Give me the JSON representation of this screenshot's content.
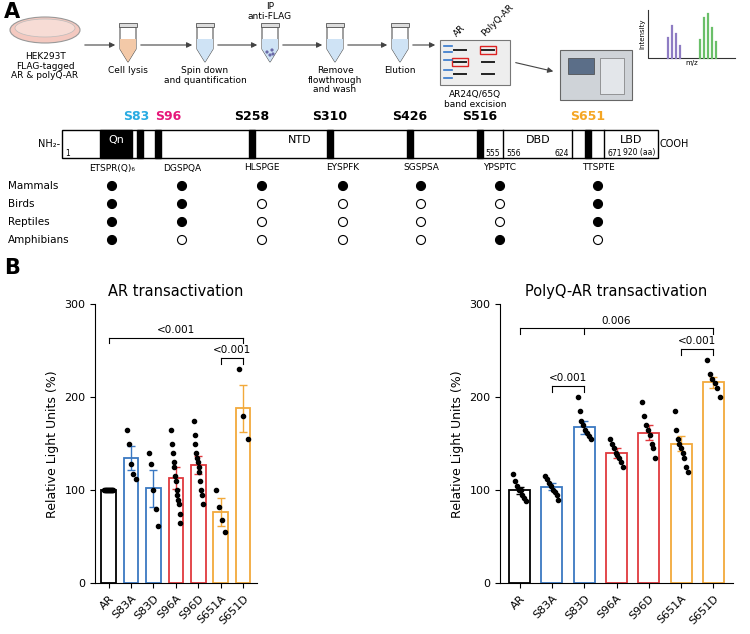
{
  "panel_labels": [
    "A",
    "B"
  ],
  "workflow": {
    "steps": [
      "HEK293T\nFLAG-tagged\nAR & polyQ-AR",
      "Cell lysis",
      "Spin down\nand quantification",
      "IP\nanti-FLAG",
      "Remove\nflowthrough\nand wash",
      "Elution",
      "AR24Q/65Q\nband excision"
    ],
    "gel_lanes": [
      "AR",
      "PolyQ-AR"
    ],
    "spectrum_axes": {
      "y": "Intensity",
      "x": "m/z"
    }
  },
  "protein_map": {
    "n_terminus": "NH₂-",
    "c_terminus": "COOH",
    "domains": [
      "Qn",
      "NTD",
      "DBD",
      "LBD"
    ],
    "boundary_labels": [
      "1",
      "555",
      "556",
      "624",
      "671",
      "920 (aa)"
    ],
    "sites": [
      {
        "label": "S83",
        "color": "#29abe2",
        "motif": "ETSPR(Q)₆"
      },
      {
        "label": "S96",
        "color": "#e6177a",
        "motif": "DGSPQA"
      },
      {
        "label": "S258",
        "color": "#000000",
        "motif": "HLSPGE"
      },
      {
        "label": "S310",
        "color": "#000000",
        "motif": "EYSPFK"
      },
      {
        "label": "S426",
        "color": "#000000",
        "motif": "SGSPSA"
      },
      {
        "label": "S516",
        "color": "#000000",
        "motif": "YPSPTC"
      },
      {
        "label": "S651",
        "color": "#f5a623",
        "motif": "TTSPTE"
      }
    ],
    "species": [
      "Mammals",
      "Birds",
      "Reptiles",
      "Amphibians"
    ],
    "conserved": [
      [
        true,
        true,
        true,
        true,
        true,
        true,
        true
      ],
      [
        true,
        true,
        false,
        false,
        false,
        false,
        true
      ],
      [
        true,
        true,
        false,
        false,
        false,
        false,
        true
      ],
      [
        true,
        false,
        false,
        false,
        false,
        true,
        false
      ]
    ]
  },
  "chart_data": [
    {
      "type": "bar",
      "title": "AR transactivation",
      "y_label": "Relative Light Units (%)",
      "categories": [
        "AR",
        "S83A",
        "S83D",
        "S96A",
        "S96D",
        "S651A",
        "S651D"
      ],
      "values": [
        100,
        135,
        102,
        113,
        127,
        77,
        188
      ],
      "errors": [
        2,
        13,
        20,
        12,
        10,
        15,
        25
      ],
      "points": [
        [
          100,
          100,
          100,
          100,
          100,
          100,
          100,
          100,
          100,
          100
        ],
        [
          165,
          150,
          128,
          118,
          112
        ],
        [
          140,
          128,
          100,
          80,
          62
        ],
        [
          165,
          150,
          140,
          130,
          125,
          115,
          110,
          100,
          95,
          90,
          85,
          75,
          65
        ],
        [
          175,
          160,
          150,
          140,
          135,
          130,
          125,
          120,
          110,
          100,
          95,
          85
        ],
        [
          100,
          82,
          68,
          55
        ],
        [
          230,
          180,
          155
        ]
      ],
      "colors": [
        "#000000",
        "#3a78c2",
        "#3a78c2",
        "#e0393e",
        "#e0393e",
        "#f2a93b",
        "#f2a93b"
      ],
      "ylim": [
        0,
        300
      ],
      "yticks": [
        0,
        100,
        200,
        300
      ],
      "grid": false,
      "annotations": [
        {
          "between": [
            "S651A",
            "S651D"
          ],
          "label": "<0.001"
        },
        {
          "between": [
            "AR",
            "S651D"
          ],
          "label": "<0.001"
        }
      ]
    },
    {
      "type": "bar",
      "title": "PolyQ-AR transactivation",
      "y_label": "Relative Light Units (%)",
      "categories": [
        "AR",
        "S83A",
        "S83D",
        "S96A",
        "S96D",
        "S651A",
        "S651D"
      ],
      "values": [
        100,
        104,
        168,
        140,
        162,
        150,
        216
      ],
      "errors": [
        4,
        4,
        7,
        5,
        8,
        8,
        6
      ],
      "points": [
        [
          118,
          110,
          105,
          100,
          100,
          95,
          92,
          88
        ],
        [
          115,
          112,
          108,
          105,
          100,
          98,
          95,
          90
        ],
        [
          200,
          185,
          175,
          170,
          165,
          162,
          158,
          155
        ],
        [
          155,
          150,
          145,
          140,
          138,
          135,
          130,
          125
        ],
        [
          195,
          180,
          170,
          165,
          160,
          150,
          145,
          135
        ],
        [
          185,
          165,
          155,
          150,
          145,
          140,
          135,
          125,
          120
        ],
        [
          240,
          225,
          220,
          215,
          210,
          200
        ]
      ],
      "colors": [
        "#000000",
        "#3a78c2",
        "#3a78c2",
        "#e0393e",
        "#e0393e",
        "#f2a93b",
        "#f2a93b"
      ],
      "ylim": [
        0,
        300
      ],
      "yticks": [
        0,
        100,
        200,
        300
      ],
      "grid": false,
      "annotations": [
        {
          "between": [
            "S83A",
            "S83D"
          ],
          "label": "<0.001"
        },
        {
          "between": [
            "S651A",
            "S651D"
          ],
          "label": "<0.001"
        },
        {
          "between": [
            "AR",
            "S83D",
            "S651D"
          ],
          "label": "0.006"
        }
      ]
    }
  ]
}
